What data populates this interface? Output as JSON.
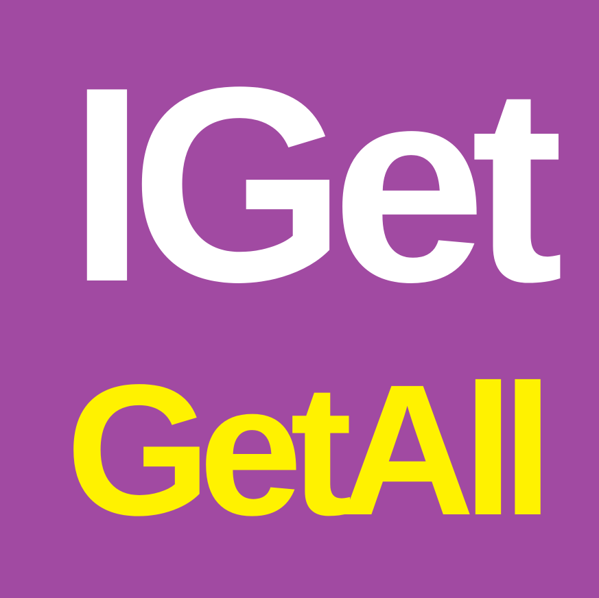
{
  "logo": {
    "line1": "IGet",
    "line2": "GetAll"
  },
  "colors": {
    "background": "#a14aa2",
    "line1": "#ffffff",
    "line2": "#fff200"
  }
}
